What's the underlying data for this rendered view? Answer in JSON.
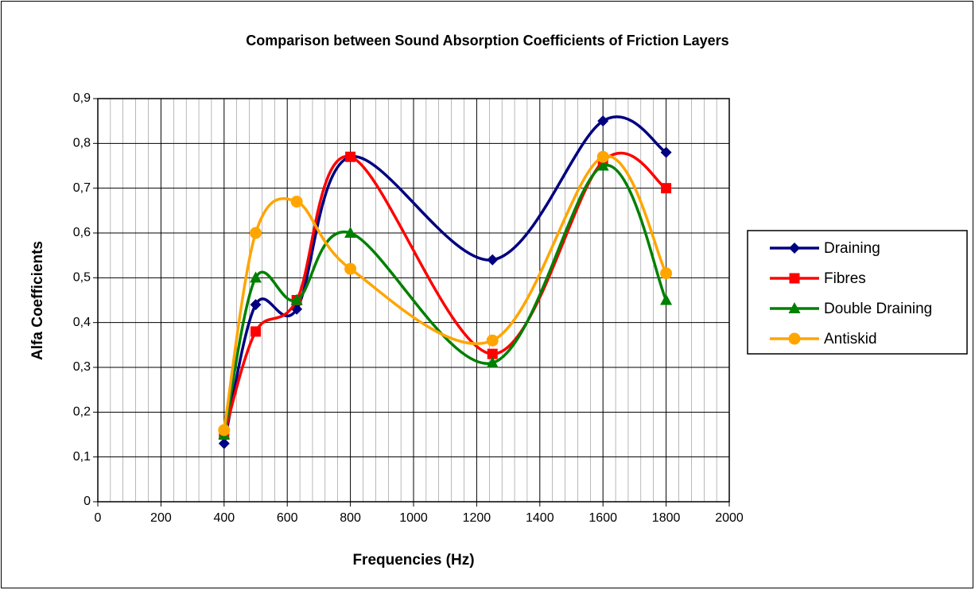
{
  "chart_data": {
    "type": "line",
    "smooth": true,
    "title": "Comparison between Sound Absorption Coefficients of Friction Layers",
    "x_label": "Frequencies (Hz)",
    "y_label": "Alfa Coefficients",
    "x": [
      400,
      500,
      630,
      800,
      1250,
      1600,
      1800
    ],
    "series": [
      {
        "name": "Draining",
        "color": "#000080",
        "marker": "diamond",
        "values": [
          0.13,
          0.44,
          0.43,
          0.77,
          0.54,
          0.85,
          0.78
        ]
      },
      {
        "name": "Fibres",
        "color": "#ff0000",
        "marker": "square",
        "values": [
          0.15,
          0.38,
          0.45,
          0.77,
          0.33,
          0.76,
          0.7
        ]
      },
      {
        "name": "Double Draining",
        "color": "#008000",
        "marker": "triangle",
        "values": [
          0.15,
          0.5,
          0.45,
          0.6,
          0.31,
          0.75,
          0.45
        ]
      },
      {
        "name": "Antiskid",
        "color": "#ffa500",
        "marker": "circle",
        "values": [
          0.16,
          0.6,
          0.67,
          0.52,
          0.36,
          0.77,
          0.51
        ]
      }
    ],
    "xlim": [
      0,
      2000
    ],
    "xticks": [
      0,
      200,
      400,
      600,
      800,
      1000,
      1200,
      1400,
      1600,
      1800,
      2000
    ],
    "ylim": [
      0,
      0.9
    ],
    "yticks": [
      0,
      {
        "value": 0.1,
        "label": "0,1"
      },
      {
        "value": 0.2,
        "label": "0,2"
      },
      {
        "value": 0.3,
        "label": "0,3"
      },
      {
        "value": 0.4,
        "label": "0,4"
      },
      {
        "value": 0.5,
        "label": "0,5"
      },
      {
        "value": 0.6,
        "label": "0,6"
      },
      {
        "value": 0.7,
        "label": "0,7"
      },
      {
        "value": 0.8,
        "label": "0,8"
      },
      {
        "value": 0.9,
        "label": "0,9"
      }
    ],
    "grid": true,
    "legend": "right"
  }
}
